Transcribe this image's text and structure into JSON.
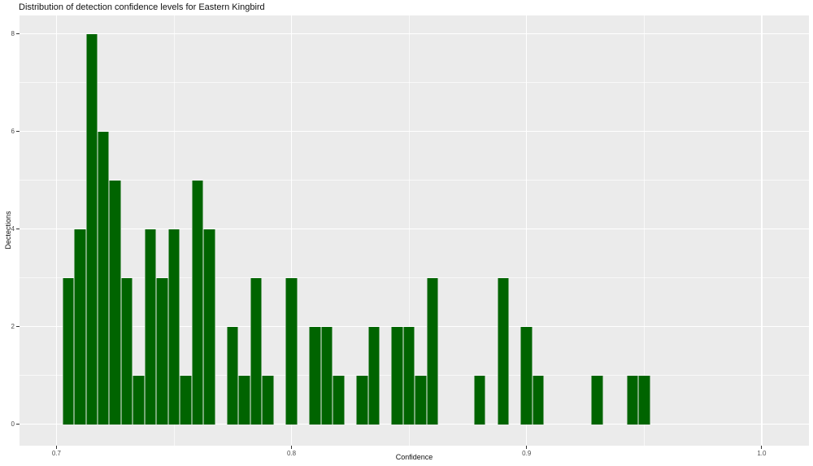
{
  "title": "Distribution of detection confidence levels for Eastern Kingbird",
  "chart_data": {
    "type": "bar",
    "subtype": "histogram",
    "title": "Distribution of detection confidence levels for Eastern Kingbird",
    "xlabel": "Confidence",
    "ylabel": "Dectections",
    "xlim": [
      0.6843,
      1.0201
    ],
    "ylim": [
      -0.44,
      8.38
    ],
    "x_tick_values": [
      0.7,
      0.8,
      0.9,
      1.0
    ],
    "x_tick_labels": [
      "0.7",
      "0.8",
      "0.9",
      "1.0"
    ],
    "x_minor_tick_values": [
      0.75,
      0.85,
      0.95
    ],
    "y_tick_values": [
      0,
      2,
      4,
      6,
      8
    ],
    "y_tick_labels": [
      "0",
      "2",
      "4",
      "6",
      "8"
    ],
    "y_minor_tick_values": [
      1,
      3,
      5,
      7
    ],
    "grid": "on",
    "legend": "none",
    "bin_width": 0.005,
    "bin_centers": [
      0.705,
      0.71,
      0.715,
      0.72,
      0.725,
      0.73,
      0.735,
      0.74,
      0.745,
      0.75,
      0.755,
      0.76,
      0.765,
      0.77,
      0.775,
      0.78,
      0.785,
      0.79,
      0.795,
      0.8,
      0.805,
      0.81,
      0.815,
      0.82,
      0.825,
      0.83,
      0.835,
      0.84,
      0.845,
      0.85,
      0.855,
      0.86,
      0.865,
      0.87,
      0.875,
      0.88,
      0.885,
      0.89,
      0.895,
      0.9,
      0.905,
      0.91,
      0.915,
      0.92,
      0.925,
      0.93,
      0.935,
      0.94,
      0.945,
      0.95
    ],
    "counts": [
      3,
      4,
      8,
      6,
      5,
      3,
      1,
      4,
      3,
      4,
      1,
      5,
      4,
      0,
      2,
      1,
      3,
      1,
      0,
      3,
      0,
      2,
      2,
      1,
      0,
      1,
      2,
      0,
      2,
      2,
      1,
      3,
      0,
      0,
      0,
      1,
      0,
      3,
      0,
      2,
      1,
      0,
      0,
      0,
      0,
      1,
      0,
      0,
      1,
      1
    ],
    "colors": {
      "bar_fill": "#006400",
      "bar_edge": "#76a876",
      "panel_background": "#ebebeb",
      "grid": "#ffffff",
      "tick_mark": "#333333",
      "tick_label": "#4d4d4d",
      "text": "#111111"
    }
  }
}
